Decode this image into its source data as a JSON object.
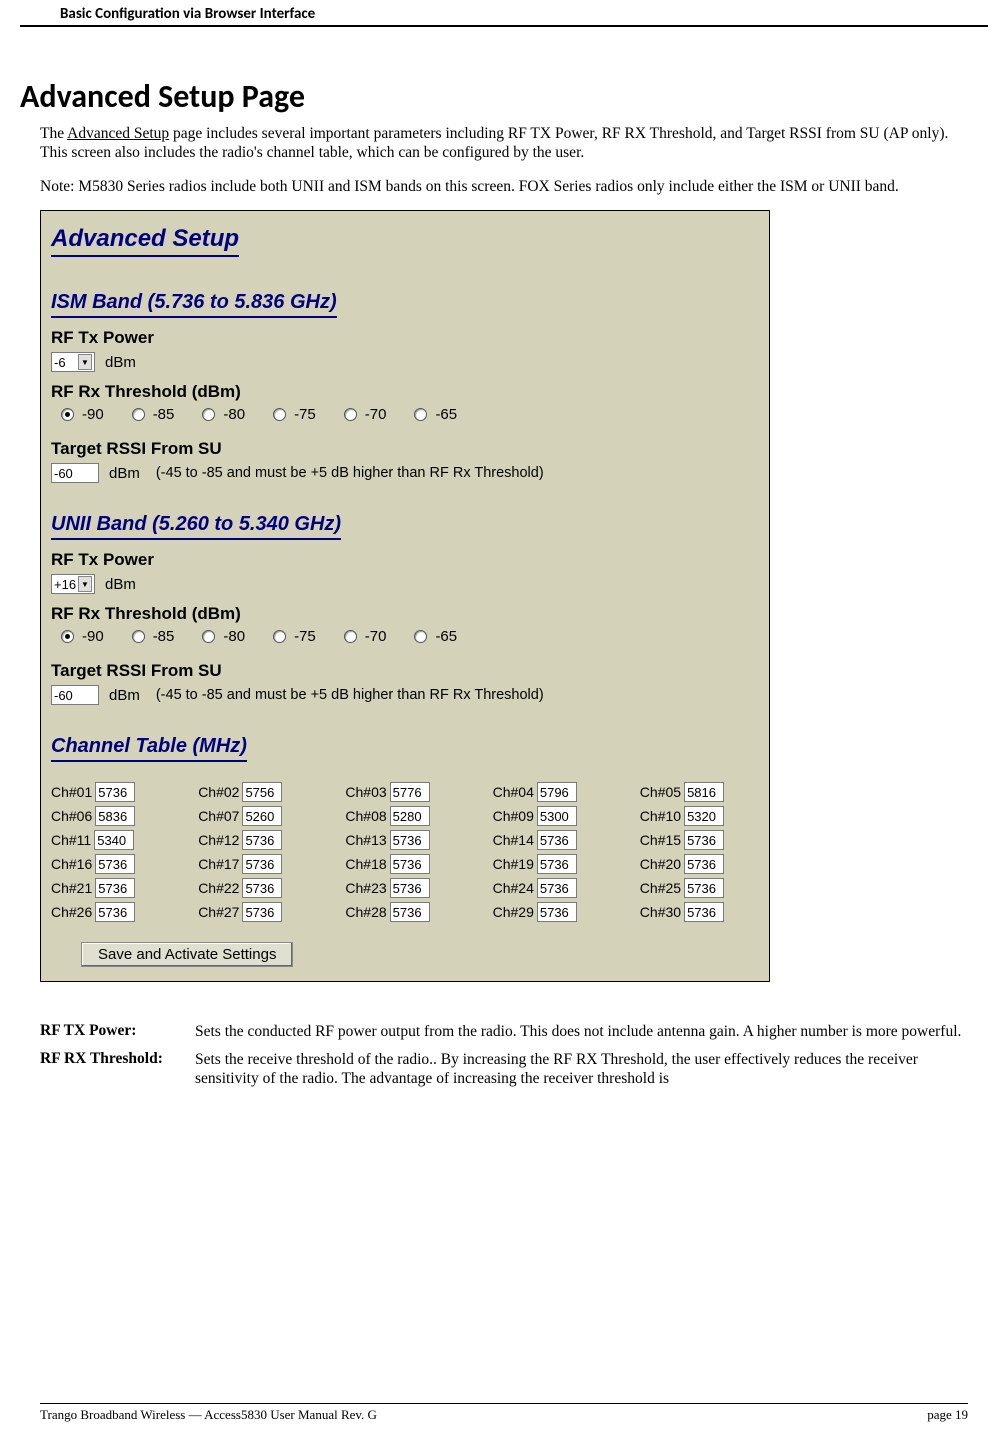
{
  "header": "Basic Configuration via Browser Interface",
  "title": "Advanced Setup Page",
  "intro": {
    "p1a": "The ",
    "p1_link": "Advanced Setup",
    "p1b": " page includes several important parameters including RF TX Power, RF RX Threshold, and Target RSSI from SU (AP only).  This screen also includes the radio's channel table, which can be configured by the user.",
    "p2": "Note:  M5830 Series radios include both UNII and ISM bands on this screen.  FOX Series radios only include either the ISM or UNII band."
  },
  "screenshot": {
    "background_color": "#d4d3ba",
    "title": "Advanced Setup",
    "ism": {
      "header": "ISM Band (5.736 to 5.836 GHz)",
      "tx_label": "RF Tx Power",
      "tx_value": "-6",
      "tx_unit": "dBm",
      "rx_label": "RF Rx Threshold (dBm)",
      "rx_opts": [
        "-90",
        "-85",
        "-80",
        "-75",
        "-70",
        "-65"
      ],
      "rx_selected": "-90",
      "rssi_label": "Target RSSI From SU",
      "rssi_value": "-60",
      "rssi_unit": "dBm",
      "rssi_note": "(-45 to -85 and must be +5 dB higher than RF Rx Threshold)"
    },
    "unii": {
      "header": "UNII Band (5.260 to 5.340 GHz)",
      "tx_label": "RF Tx Power",
      "tx_value": "+16",
      "tx_unit": "dBm",
      "rx_label": "RF Rx Threshold (dBm)",
      "rx_opts": [
        "-90",
        "-85",
        "-80",
        "-75",
        "-70",
        "-65"
      ],
      "rx_selected": "-90",
      "rssi_label": "Target RSSI From SU",
      "rssi_value": "-60",
      "rssi_unit": "dBm",
      "rssi_note": "(-45 to -85 and must be +5 dB higher than RF Rx Threshold)"
    },
    "channels": {
      "header": "Channel Table (MHz)",
      "list": [
        {
          "l": "Ch#01",
          "v": "5736"
        },
        {
          "l": "Ch#02",
          "v": "5756"
        },
        {
          "l": "Ch#03",
          "v": "5776"
        },
        {
          "l": "Ch#04",
          "v": "5796"
        },
        {
          "l": "Ch#05",
          "v": "5816"
        },
        {
          "l": "Ch#06",
          "v": "5836"
        },
        {
          "l": "Ch#07",
          "v": "5260"
        },
        {
          "l": "Ch#08",
          "v": "5280"
        },
        {
          "l": "Ch#09",
          "v": "5300"
        },
        {
          "l": "Ch#10",
          "v": "5320"
        },
        {
          "l": "Ch#11",
          "v": "5340"
        },
        {
          "l": "Ch#12",
          "v": "5736"
        },
        {
          "l": "Ch#13",
          "v": "5736"
        },
        {
          "l": "Ch#14",
          "v": "5736"
        },
        {
          "l": "Ch#15",
          "v": "5736"
        },
        {
          "l": "Ch#16",
          "v": "5736"
        },
        {
          "l": "Ch#17",
          "v": "5736"
        },
        {
          "l": "Ch#18",
          "v": "5736"
        },
        {
          "l": "Ch#19",
          "v": "5736"
        },
        {
          "l": "Ch#20",
          "v": "5736"
        },
        {
          "l": "Ch#21",
          "v": "5736"
        },
        {
          "l": "Ch#22",
          "v": "5736"
        },
        {
          "l": "Ch#23",
          "v": "5736"
        },
        {
          "l": "Ch#24",
          "v": "5736"
        },
        {
          "l": "Ch#25",
          "v": "5736"
        },
        {
          "l": "Ch#26",
          "v": "5736"
        },
        {
          "l": "Ch#27",
          "v": "5736"
        },
        {
          "l": "Ch#28",
          "v": "5736"
        },
        {
          "l": "Ch#29",
          "v": "5736"
        },
        {
          "l": "Ch#30",
          "v": "5736"
        }
      ]
    },
    "save_label": "Save and Activate Settings"
  },
  "defs": {
    "d1": {
      "label": "RF TX Power:",
      "text": "Sets the conducted RF power output from the radio.  This does not include antenna gain.  A higher number is more powerful."
    },
    "d2": {
      "label": "RF RX Threshold:",
      "text": "Sets the receive threshold of the radio..  By increasing the RF RX Threshold, the user effectively reduces the receiver sensitivity of the radio.  The advantage of increasing the receiver threshold is"
    }
  },
  "footer": {
    "left": "Trango Broadband Wireless — Access5830 User Manual  Rev. G",
    "right": "page 19"
  }
}
